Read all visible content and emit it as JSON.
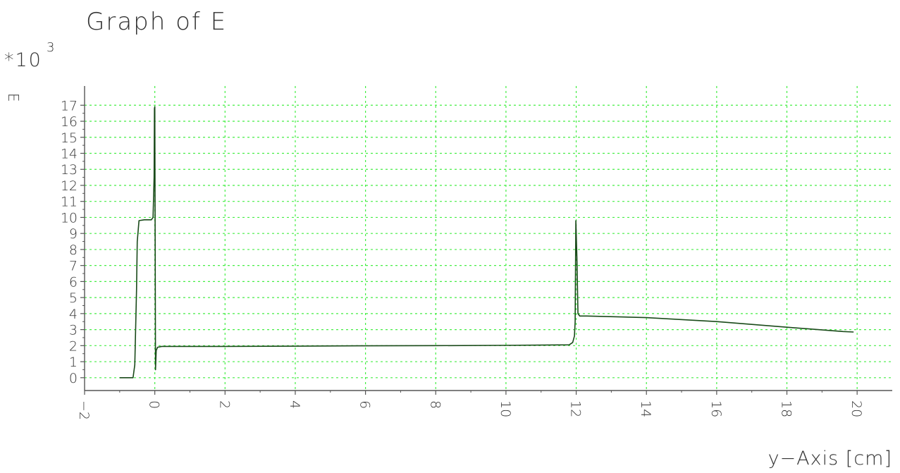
{
  "chart_data": {
    "type": "line",
    "title": "Graph of E",
    "multiplier": "*10",
    "multiplier_exp": "3",
    "ylabel": "E",
    "xlabel": "y−Axis [cm]",
    "xlim": [
      -2,
      21
    ],
    "ylim": [
      -0.8,
      18.2
    ],
    "xticks": [
      -2,
      0,
      2,
      4,
      6,
      8,
      10,
      12,
      14,
      16,
      18,
      20
    ],
    "xtick_labels": [
      "−2",
      "0",
      "2",
      "4",
      "6",
      "8",
      "10",
      "12",
      "14",
      "16",
      "18",
      "20"
    ],
    "yticks": [
      0,
      1,
      2,
      3,
      4,
      5,
      6,
      7,
      8,
      9,
      10,
      11,
      12,
      13,
      14,
      15,
      16,
      17
    ],
    "ytick_labels": [
      "0",
      "1",
      "2",
      "3",
      "4",
      "5",
      "6",
      "7",
      "8",
      "9",
      "10",
      "11",
      "12",
      "13",
      "14",
      "15",
      "16",
      "17"
    ],
    "grid": true,
    "series": [
      {
        "x": [
          -1.0,
          -0.62,
          -0.57,
          -0.52,
          -0.5,
          -0.45,
          -0.3,
          -0.1,
          -0.05,
          -0.02,
          -0.01,
          0.0,
          0.02,
          0.04,
          0.08,
          0.2,
          2.0,
          4.0,
          6.0,
          8.0,
          10.0,
          11.8,
          11.9,
          11.95,
          11.97,
          11.99,
          12.02,
          12.05,
          12.1,
          12.3,
          14.0,
          16.0,
          18.0,
          19.6,
          19.9
        ],
        "y": [
          0.0,
          0.0,
          0.8,
          5.5,
          8.5,
          9.8,
          9.85,
          9.85,
          10.0,
          12.5,
          16.8,
          16.9,
          0.5,
          1.7,
          1.9,
          1.95,
          1.95,
          1.97,
          1.99,
          2.0,
          2.02,
          2.05,
          2.2,
          2.6,
          3.5,
          9.8,
          7.5,
          4.0,
          3.85,
          3.85,
          3.75,
          3.5,
          3.15,
          2.88,
          2.85
        ]
      }
    ],
    "colors": {
      "line": "#1a4a1a",
      "grid": "#44ee44",
      "axis": "#555555",
      "text": "#333333"
    }
  }
}
